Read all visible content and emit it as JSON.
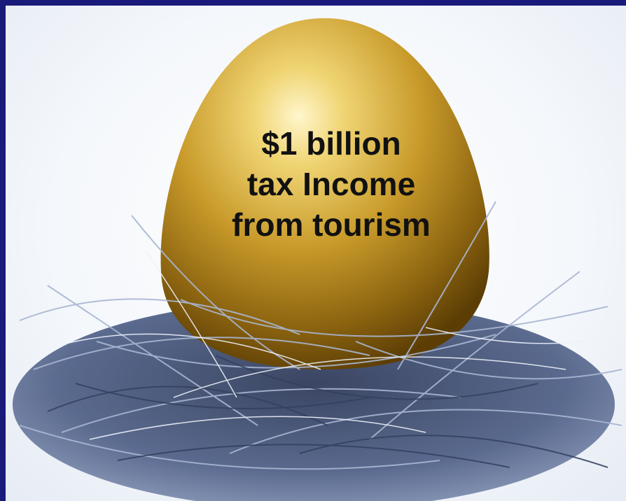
{
  "slide": {
    "caption_lines": [
      "$1 billion",
      "tax Income",
      "from tourism"
    ],
    "colors": {
      "border": "#1a1a7a",
      "egg_gold": "#c89a2a",
      "egg_highlight": "#fff6cc",
      "nest": "#4a5a7e",
      "text": "#111111"
    },
    "image_subject": "golden egg in a silver-blue nest"
  }
}
